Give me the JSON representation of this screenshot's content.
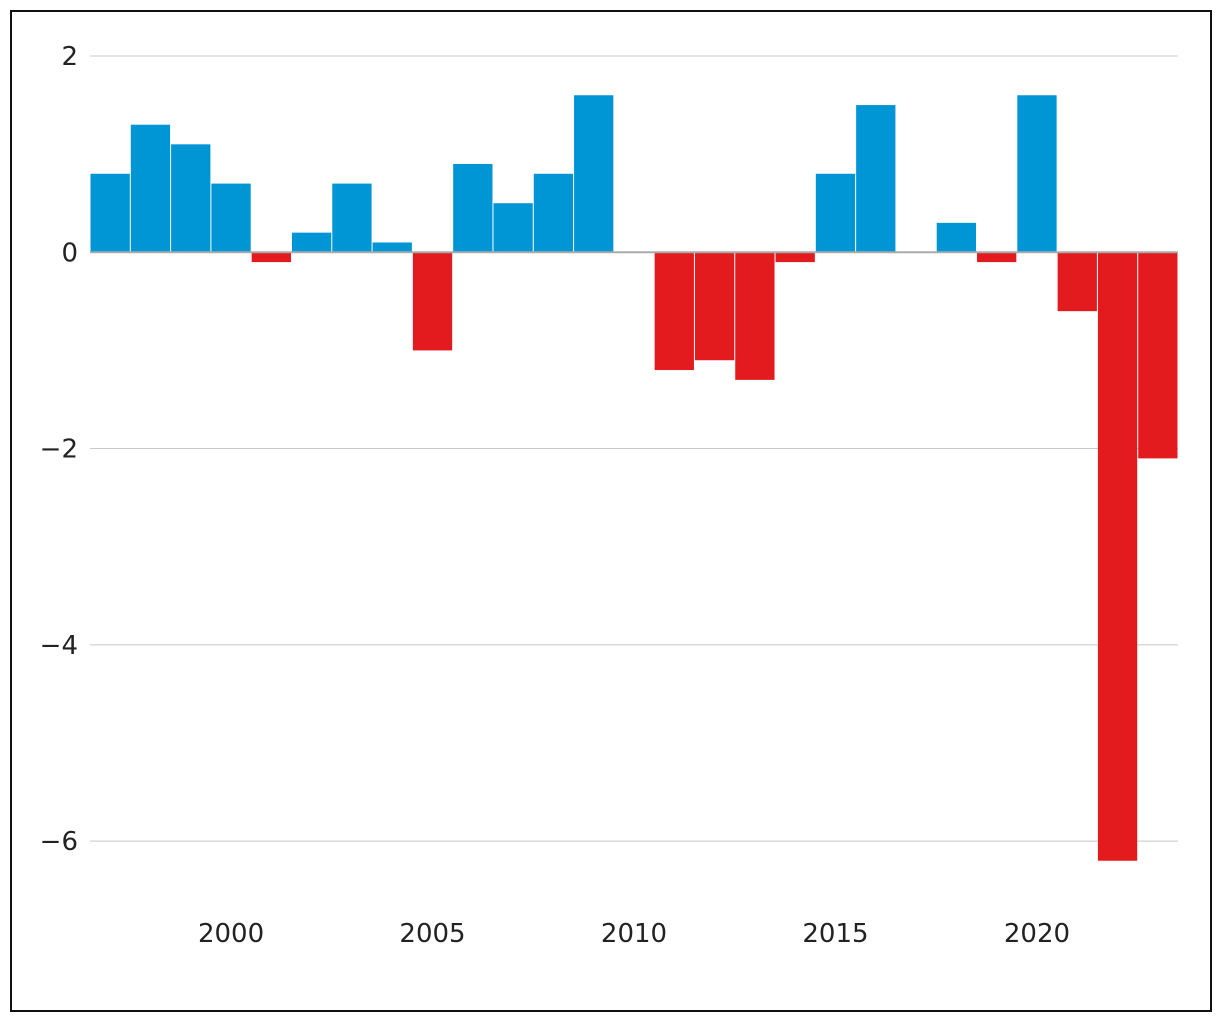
{
  "chart_data": {
    "type": "bar",
    "title": "",
    "xlabel": "",
    "ylabel": "",
    "x": [
      1997,
      1998,
      1999,
      2000,
      2001,
      2002,
      2003,
      2004,
      2005,
      2006,
      2007,
      2008,
      2009,
      2010,
      2011,
      2012,
      2013,
      2014,
      2015,
      2016,
      2017,
      2018,
      2019,
      2020,
      2021,
      2022,
      2023
    ],
    "values": [
      0.8,
      1.3,
      1.1,
      0.7,
      -0.1,
      0.2,
      0.7,
      0.1,
      -1.0,
      0.9,
      0.5,
      0.8,
      1.6,
      0.0,
      -1.2,
      -1.1,
      -1.3,
      -0.1,
      0.8,
      1.5,
      0.0,
      0.3,
      -0.1,
      1.6,
      -0.6,
      -6.2,
      -2.1
    ],
    "ylim": [
      -6.6,
      2.0
    ],
    "xlim": [
      1996.5,
      2023.5
    ],
    "yticks": [
      2,
      0,
      -2,
      -4,
      -6
    ],
    "ytick_labels": [
      "2",
      "0",
      "−2",
      "−4",
      "−6"
    ],
    "xticks": [
      2000,
      2005,
      2010,
      2015,
      2020
    ],
    "xtick_labels": [
      "2000",
      "2005",
      "2010",
      "2015",
      "2020"
    ],
    "grid": true,
    "legend": "none",
    "colors": {
      "positive": "#0096d6",
      "negative": "#e31b1e",
      "grid": "#c8c8c8",
      "zero_line": "#aaaaaa",
      "text": "#222222"
    }
  }
}
